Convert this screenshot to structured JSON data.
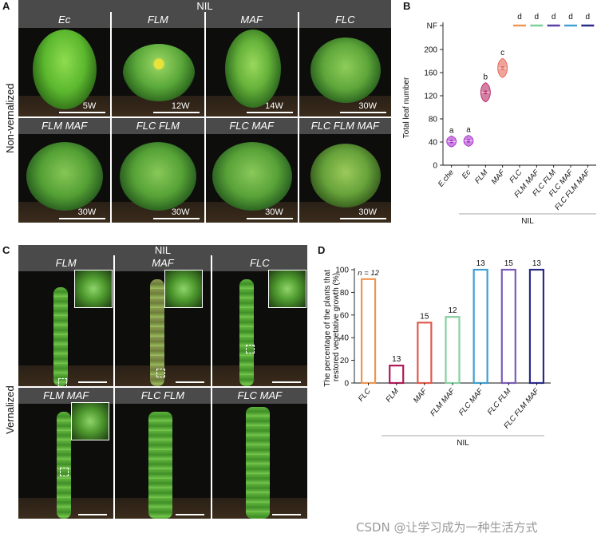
{
  "panel_labels": {
    "a": "A",
    "b": "B",
    "c": "C",
    "d": "D"
  },
  "panel_a": {
    "header": "NIL",
    "side_label": "Non-vernalized",
    "cells": [
      {
        "genotype": "Ec",
        "age": "5W"
      },
      {
        "genotype": "FLM",
        "age": "12W"
      },
      {
        "genotype": "MAF",
        "age": "14W"
      },
      {
        "genotype": "FLC",
        "age": "30W"
      },
      {
        "genotype": "FLM MAF",
        "age": "30W"
      },
      {
        "genotype": "FLC FLM",
        "age": "30W"
      },
      {
        "genotype": "FLC MAF",
        "age": "30W"
      },
      {
        "genotype": "FLC FLM MAF",
        "age": "30W"
      }
    ]
  },
  "panel_c": {
    "header": "NIL",
    "side_label": "Vernalized",
    "cells": [
      {
        "genotype": "FLM"
      },
      {
        "genotype": "MAF"
      },
      {
        "genotype": "FLC"
      },
      {
        "genotype": "FLM MAF"
      },
      {
        "genotype": "FLC FLM"
      },
      {
        "genotype": "FLC MAF"
      }
    ]
  },
  "chart_data": [
    {
      "panel": "B",
      "type": "scatter",
      "ylabel": "Total leaf number",
      "xlabel": "NIL",
      "ylim": [
        0,
        200
      ],
      "yticks": [
        "0",
        "40",
        "80",
        "120",
        "160",
        "200",
        "NF"
      ],
      "categories": [
        "E.che",
        "Ec",
        "FLM",
        "MAF",
        "FLC",
        "FLM MAF",
        "FLC FLM",
        "FLC MAF",
        "FLC FLM MAF"
      ],
      "group_line_label": "NIL",
      "significance": [
        "a",
        "a",
        "b",
        "c",
        "d",
        "d",
        "d",
        "d",
        "d"
      ],
      "values": [
        41,
        42,
        126,
        168,
        "NF",
        "NF",
        "NF",
        "NF",
        "NF"
      ],
      "colors": [
        "#a020c8",
        "#a020c8",
        "#b0185a",
        "#e05a4a",
        "#f0954f",
        "#7fcf9e",
        "#5a3fa8",
        "#3f9fd0",
        "#2a2a8a"
      ]
    },
    {
      "panel": "D",
      "type": "bar",
      "ylabel": "The percentage of the plants that restored vegetative growth (%)",
      "xlabel": "NIL",
      "ylim": [
        0,
        100
      ],
      "yticks": [
        "0",
        "20",
        "40",
        "60",
        "80",
        "100"
      ],
      "categories": [
        "FLC",
        "FLM",
        "MAF",
        "FLM MAF",
        "FLC MAF",
        "FLC FLM",
        "FLC FLM MAF"
      ],
      "values": [
        91.7,
        15.4,
        53.3,
        58.3,
        100,
        100,
        100
      ],
      "n_labels": [
        "n = 12",
        "13",
        "15",
        "12",
        "13",
        "15",
        "13"
      ],
      "colors": [
        "#f0954f",
        "#b0185a",
        "#e05a4a",
        "#86d0a0",
        "#3f9fd0",
        "#7a5bb8",
        "#2a2a8a"
      ]
    }
  ],
  "watermark": "CSDN @让学习成为一种生活方式"
}
